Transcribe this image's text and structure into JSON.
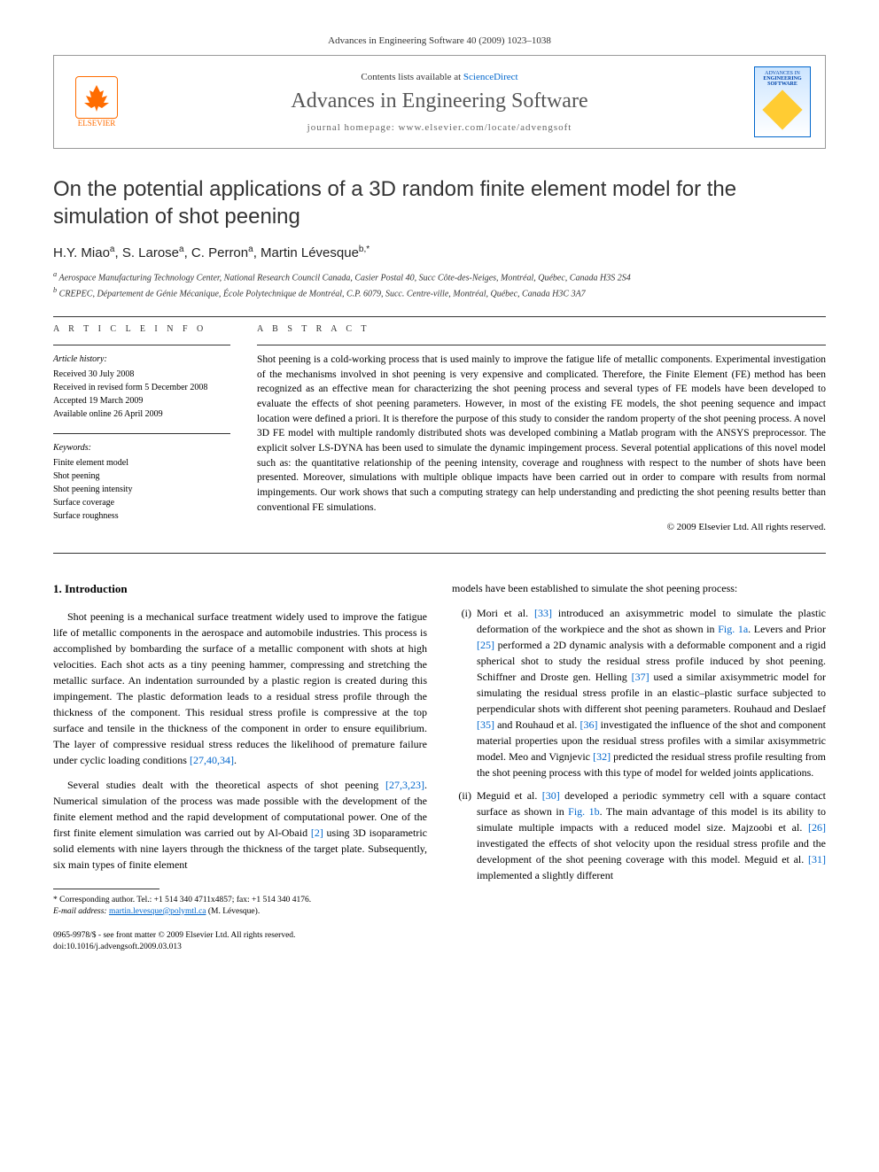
{
  "header": {
    "citation": "Advances in Engineering Software 40 (2009) 1023–1038"
  },
  "banner": {
    "publisher_name": "ELSEVIER",
    "contents_prefix": "Contents lists available at ",
    "contents_link": "ScienceDirect",
    "journal_name": "Advances in Engineering Software",
    "homepage_label": "journal homepage: www.elsevier.com/locate/advengsoft",
    "cover_text_top": "ADVANCES IN",
    "cover_text_main": "ENGINEERING SOFTWARE"
  },
  "article": {
    "title": "On the potential applications of a 3D random finite element model for the simulation of shot peening",
    "authors_html": "H.Y. Miao<sup>a</sup>, S. Larose<sup>a</sup>, C. Perron<sup>a</sup>, Martin Lévesque<sup>b,*</sup>",
    "affiliations": {
      "a": "Aerospace Manufacturing Technology Center, National Research Council Canada, Casier Postal 40, Succ Côte-des-Neiges, Montréal, Québec, Canada H3S 2S4",
      "b": "CREPEC, Département de Génie Mécanique, École Polytechnique de Montréal, C.P. 6079, Succ. Centre-ville, Montréal, Québec, Canada H3C 3A7"
    }
  },
  "info": {
    "heading": "A R T I C L E   I N F O",
    "history_label": "Article history:",
    "history": [
      "Received 30 July 2008",
      "Received in revised form 5 December 2008",
      "Accepted 19 March 2009",
      "Available online 26 April 2009"
    ],
    "keywords_label": "Keywords:",
    "keywords": [
      "Finite element model",
      "Shot peening",
      "Shot peening intensity",
      "Surface coverage",
      "Surface roughness"
    ]
  },
  "abstract": {
    "heading": "A B S T R A C T",
    "text": "Shot peening is a cold-working process that is used mainly to improve the fatigue life of metallic components. Experimental investigation of the mechanisms involved in shot peening is very expensive and complicated. Therefore, the Finite Element (FE) method has been recognized as an effective mean for characterizing the shot peening process and several types of FE models have been developed to evaluate the effects of shot peening parameters. However, in most of the existing FE models, the shot peening sequence and impact location were defined a priori. It is therefore the purpose of this study to consider the random property of the shot peening process. A novel 3D FE model with multiple randomly distributed shots was developed combining a Matlab program with the ANSYS preprocessor. The explicit solver LS-DYNA has been used to simulate the dynamic impingement process. Several potential applications of this novel model such as: the quantitative relationship of the peening intensity, coverage and roughness with respect to the number of shots have been presented. Moreover, simulations with multiple oblique impacts have been carried out in order to compare with results from normal impingements. Our work shows that such a computing strategy can help understanding and predicting the shot peening results better than conventional FE simulations.",
    "copyright": "© 2009 Elsevier Ltd. All rights reserved."
  },
  "body": {
    "section_heading": "1. Introduction",
    "p1": "Shot peening is a mechanical surface treatment widely used to improve the fatigue life of metallic components in the aerospace and automobile industries. This process is accomplished by bombarding the surface of a metallic component with shots at high velocities. Each shot acts as a tiny peening hammer, compressing and stretching the metallic surface. An indentation surrounded by a plastic region is created during this impingement. The plastic deformation leads to a residual stress profile through the thickness of the component. This residual stress profile is compressive at the top surface and tensile in the thickness of the component in order to ensure equilibrium. The layer of compressive residual stress reduces the likelihood of premature failure under cyclic loading conditions [27,40,34].",
    "p2": "Several studies dealt with the theoretical aspects of shot peening [27,3,23]. Numerical simulation of the process was made possible with the development of the finite element method and the rapid development of computational power. One of the first finite element simulation was carried out by Al-Obaid [2] using 3D isoparametric solid elements with nine layers through the thickness of the target plate. Subsequently, six main types of finite element",
    "p3": "models have been established to simulate the shot peening process:",
    "li1": "Mori et al. [33] introduced an axisymmetric model to simulate the plastic deformation of the workpiece and the shot as shown in Fig. 1a. Levers and Prior [25] performed a 2D dynamic analysis with a deformable component and a rigid spherical shot to study the residual stress profile induced by shot peening. Schiffner and Droste gen. Helling [37] used a similar axisymmetric model for simulating the residual stress profile in an elastic–plastic surface subjected to perpendicular shots with different shot peening parameters. Rouhaud and Deslaef [35] and Rouhaud et al. [36] investigated the influence of the shot and component material properties upon the residual stress profiles with a similar axisymmetric model. Meo and Vignjevic [32] predicted the residual stress profile resulting from the shot peening process with this type of model for welded joints applications.",
    "li2": "Meguid et al. [30] developed a periodic symmetry cell with a square contact surface as shown in Fig. 1b. The main advantage of this model is its ability to simulate multiple impacts with a reduced model size. Majzoobi et al. [26] investigated the effects of shot velocity upon the residual stress profile and the development of the shot peening coverage with this model. Meguid et al. [31] implemented a slightly different"
  },
  "footnote": {
    "corr": "* Corresponding author. Tel.: +1 514 340 4711x4857; fax: +1 514 340 4176.",
    "email_label": "E-mail address:",
    "email": "martin.levesque@polymtl.ca",
    "email_suffix": "(M. Lévesque)."
  },
  "bottom": {
    "line1": "0965-9978/$ - see front matter © 2009 Elsevier Ltd. All rights reserved.",
    "line2": "doi:10.1016/j.advengsoft.2009.03.013"
  },
  "colors": {
    "link": "#0066cc",
    "elsevier": "#ff6c00",
    "text": "#000000",
    "gray": "#555555"
  }
}
